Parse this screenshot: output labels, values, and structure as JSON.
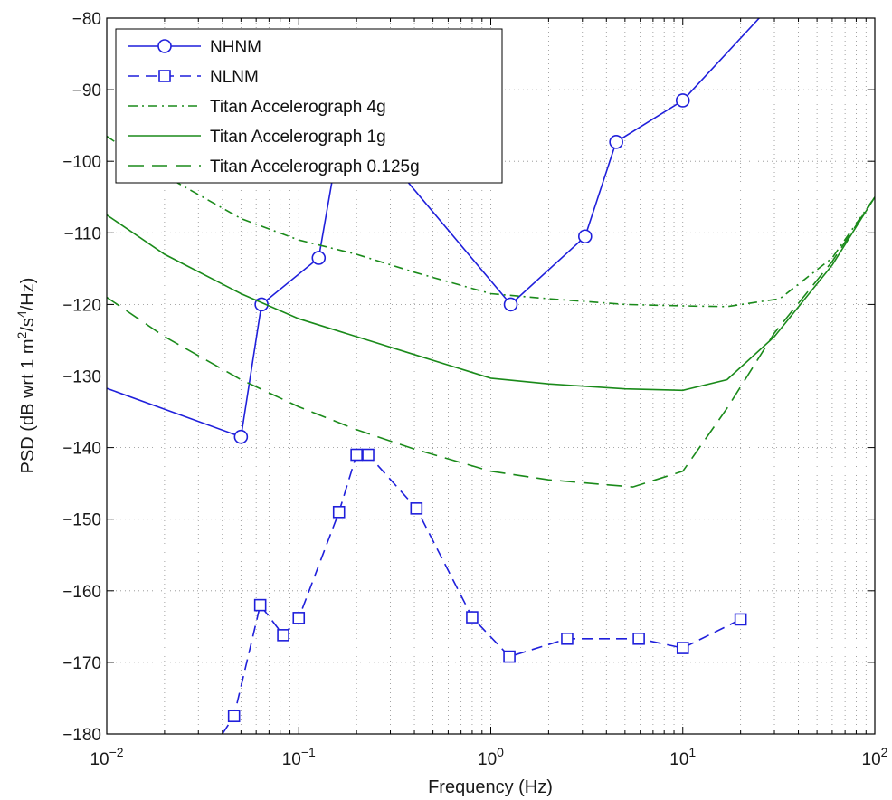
{
  "chart_data": {
    "type": "line",
    "title": "",
    "xlabel": "Frequency (Hz)",
    "ylabel": "PSD (dB wrt 1 m2/s4/Hz)",
    "ylabel_parts": [
      "PSD (dB wrt 1 m",
      "2",
      "/s",
      "4",
      "/Hz)"
    ],
    "x_scale": "log",
    "xlim": [
      0.01,
      100
    ],
    "ylim": [
      -180,
      -80
    ],
    "x_ticks": [
      {
        "value": 0.01,
        "base": "10",
        "exp": "−2"
      },
      {
        "value": 0.1,
        "base": "10",
        "exp": "−1"
      },
      {
        "value": 1,
        "base": "10",
        "exp": "0"
      },
      {
        "value": 10,
        "base": "10",
        "exp": "1"
      },
      {
        "value": 100,
        "base": "10",
        "exp": "2"
      }
    ],
    "y_ticks": [
      {
        "value": -80,
        "label": "−80"
      },
      {
        "value": -90,
        "label": "−90"
      },
      {
        "value": -100,
        "label": "−100"
      },
      {
        "value": -110,
        "label": "−110"
      },
      {
        "value": -120,
        "label": "−120"
      },
      {
        "value": -130,
        "label": "−130"
      },
      {
        "value": -140,
        "label": "−140"
      },
      {
        "value": -150,
        "label": "−150"
      },
      {
        "value": -160,
        "label": "−160"
      },
      {
        "value": -170,
        "label": "−170"
      },
      {
        "value": -180,
        "label": "−180"
      }
    ],
    "grid": true,
    "legend_position": "top-left",
    "series": [
      {
        "name": "NHNM",
        "color": "#1f1fdb",
        "dash": "solid",
        "marker": "circle",
        "points": [
          [
            0.0095,
            -131.5
          ],
          [
            0.05,
            -138.5
          ],
          [
            0.064,
            -120
          ],
          [
            0.127,
            -113.5
          ],
          [
            0.16,
            -98
          ],
          [
            0.2,
            -93
          ],
          [
            0.3,
            -100
          ],
          [
            1.27,
            -120
          ],
          [
            3.1,
            -110.5
          ],
          [
            4.5,
            -97.3
          ],
          [
            10,
            -91.5
          ],
          [
            25,
            -80
          ]
        ],
        "marker_points": [
          [
            0.05,
            -138.5
          ],
          [
            0.064,
            -120
          ],
          [
            0.127,
            -113.5
          ],
          [
            1.27,
            -120
          ],
          [
            3.1,
            -110.5
          ],
          [
            4.5,
            -97.3
          ],
          [
            10,
            -91.5
          ]
        ]
      },
      {
        "name": "NLNM",
        "color": "#1f1fdb",
        "dash": "dashed",
        "marker": "square",
        "points": [
          [
            0.04,
            -180
          ],
          [
            0.046,
            -177.5
          ],
          [
            0.063,
            -162
          ],
          [
            0.083,
            -166.2
          ],
          [
            0.1,
            -163.8
          ],
          [
            0.162,
            -149
          ],
          [
            0.2,
            -141
          ],
          [
            0.23,
            -141
          ],
          [
            0.41,
            -148.5
          ],
          [
            0.8,
            -163.7
          ],
          [
            1.25,
            -169.2
          ],
          [
            2.5,
            -166.7
          ],
          [
            5.9,
            -166.7
          ],
          [
            10,
            -168
          ],
          [
            20,
            -164
          ]
        ],
        "marker_points": [
          [
            0.046,
            -177.5
          ],
          [
            0.063,
            -162
          ],
          [
            0.083,
            -166.2
          ],
          [
            0.1,
            -163.8
          ],
          [
            0.162,
            -149
          ],
          [
            0.2,
            -141
          ],
          [
            0.23,
            -141
          ],
          [
            0.41,
            -148.5
          ],
          [
            0.8,
            -163.7
          ],
          [
            1.25,
            -169.2
          ],
          [
            2.5,
            -166.7
          ],
          [
            5.9,
            -166.7
          ],
          [
            10,
            -168
          ],
          [
            20,
            -164
          ]
        ]
      },
      {
        "name": "Titan Accelerograph 4g",
        "color": "#1a8a1a",
        "dash": "dashdot",
        "marker": "none",
        "points": [
          [
            0.01,
            -96.5
          ],
          [
            0.02,
            -102
          ],
          [
            0.05,
            -108
          ],
          [
            0.1,
            -111
          ],
          [
            0.2,
            -113
          ],
          [
            0.4,
            -115.5
          ],
          [
            1,
            -118.5
          ],
          [
            2,
            -119.2
          ],
          [
            5,
            -120
          ],
          [
            10,
            -120.2
          ],
          [
            17,
            -120.3
          ],
          [
            32,
            -119.2
          ],
          [
            60,
            -113.5
          ],
          [
            100,
            -105
          ]
        ]
      },
      {
        "name": "Titan Accelerograph 1g",
        "color": "#1a8a1a",
        "dash": "solid",
        "marker": "none",
        "points": [
          [
            0.01,
            -107.5
          ],
          [
            0.02,
            -113
          ],
          [
            0.05,
            -118.5
          ],
          [
            0.1,
            -122
          ],
          [
            0.2,
            -124.5
          ],
          [
            0.4,
            -127
          ],
          [
            1,
            -130.3
          ],
          [
            2,
            -131.1
          ],
          [
            5,
            -131.8
          ],
          [
            10,
            -132
          ],
          [
            17,
            -130.5
          ],
          [
            30,
            -124.5
          ],
          [
            60,
            -114.5
          ],
          [
            100,
            -105
          ]
        ]
      },
      {
        "name": "Titan Accelerograph 0.125g",
        "color": "#1a8a1a",
        "dash": "longdash",
        "marker": "none",
        "points": [
          [
            0.01,
            -119
          ],
          [
            0.02,
            -124.5
          ],
          [
            0.05,
            -130.5
          ],
          [
            0.1,
            -134.3
          ],
          [
            0.2,
            -137.5
          ],
          [
            0.4,
            -140.2
          ],
          [
            1,
            -143.3
          ],
          [
            2,
            -144.5
          ],
          [
            5.5,
            -145.5
          ],
          [
            10,
            -143.3
          ],
          [
            17,
            -134.5
          ],
          [
            30,
            -124
          ],
          [
            60,
            -114
          ],
          [
            100,
            -105
          ]
        ]
      }
    ]
  }
}
